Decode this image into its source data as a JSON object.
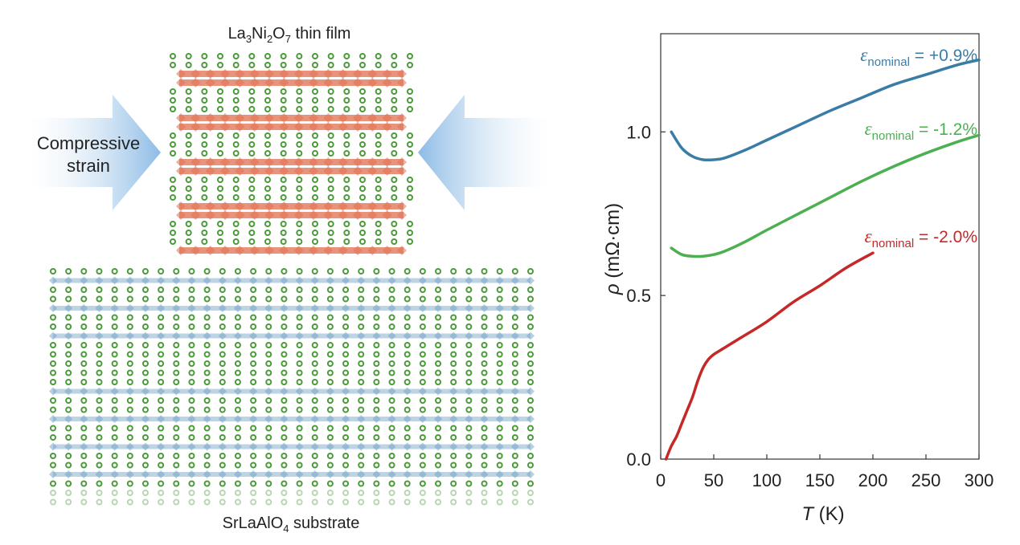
{
  "schematic": {
    "film_label": {
      "base": "La",
      "sub1": "3",
      "mid": "Ni",
      "sub2": "2",
      "o": "O",
      "sub3": "7",
      "rest": " thin film"
    },
    "substrate_label": {
      "base": "SrLaAlO",
      "sub": "4",
      "rest": " substrate"
    },
    "strain_label": [
      "Compressive",
      "strain"
    ],
    "colors": {
      "film": "#e07050",
      "substrate": "#6e9fc4",
      "atom": "#4a9a3a",
      "arrow": "#a9cbe8"
    }
  },
  "chart_data": {
    "type": "line",
    "xlabel_symbol": "T",
    "xlabel_unit": "(K)",
    "ylabel_symbol": "ρ",
    "ylabel_unit": "(mΩ·cm)",
    "xlim": [
      0,
      300
    ],
    "ylim": [
      0,
      1.3
    ],
    "xticks": [
      0,
      50,
      100,
      150,
      200,
      250,
      300
    ],
    "yticks": [
      0.0,
      0.5,
      1.0
    ],
    "ytick_labels": [
      "0.0",
      "0.5",
      "1.0"
    ],
    "series": [
      {
        "name": "ε_nominal = +0.9%",
        "label_symbol": "ε",
        "label_sub": "nominal",
        "label_value": "= +0.9%",
        "color": "#3a7ca5",
        "x": [
          10,
          20,
          30,
          40,
          50,
          60,
          80,
          100,
          130,
          160,
          190,
          220,
          250,
          280,
          300
        ],
        "y": [
          1.0,
          0.95,
          0.925,
          0.915,
          0.915,
          0.92,
          0.945,
          0.975,
          1.02,
          1.065,
          1.105,
          1.145,
          1.175,
          1.205,
          1.22
        ]
      },
      {
        "name": "ε_nominal = -1.2%",
        "label_symbol": "ε",
        "label_sub": "nominal",
        "label_value": "= -1.2%",
        "color": "#4caf50",
        "x": [
          10,
          20,
          30,
          40,
          50,
          60,
          80,
          100,
          130,
          160,
          190,
          220,
          250,
          280,
          300
        ],
        "y": [
          0.645,
          0.625,
          0.62,
          0.62,
          0.625,
          0.635,
          0.665,
          0.7,
          0.75,
          0.8,
          0.85,
          0.895,
          0.935,
          0.97,
          0.99
        ]
      },
      {
        "name": "ε_nominal = -2.0%",
        "label_symbol": "ε",
        "label_sub": "nominal",
        "label_value": "= -2.0%",
        "color": "#c62828",
        "x": [
          5,
          10,
          15,
          20,
          25,
          30,
          35,
          40,
          45,
          50,
          60,
          75,
          100,
          125,
          150,
          175,
          200
        ],
        "y": [
          0.0,
          0.04,
          0.07,
          0.11,
          0.15,
          0.19,
          0.24,
          0.28,
          0.305,
          0.32,
          0.34,
          0.37,
          0.42,
          0.48,
          0.53,
          0.585,
          0.63
        ]
      }
    ]
  }
}
